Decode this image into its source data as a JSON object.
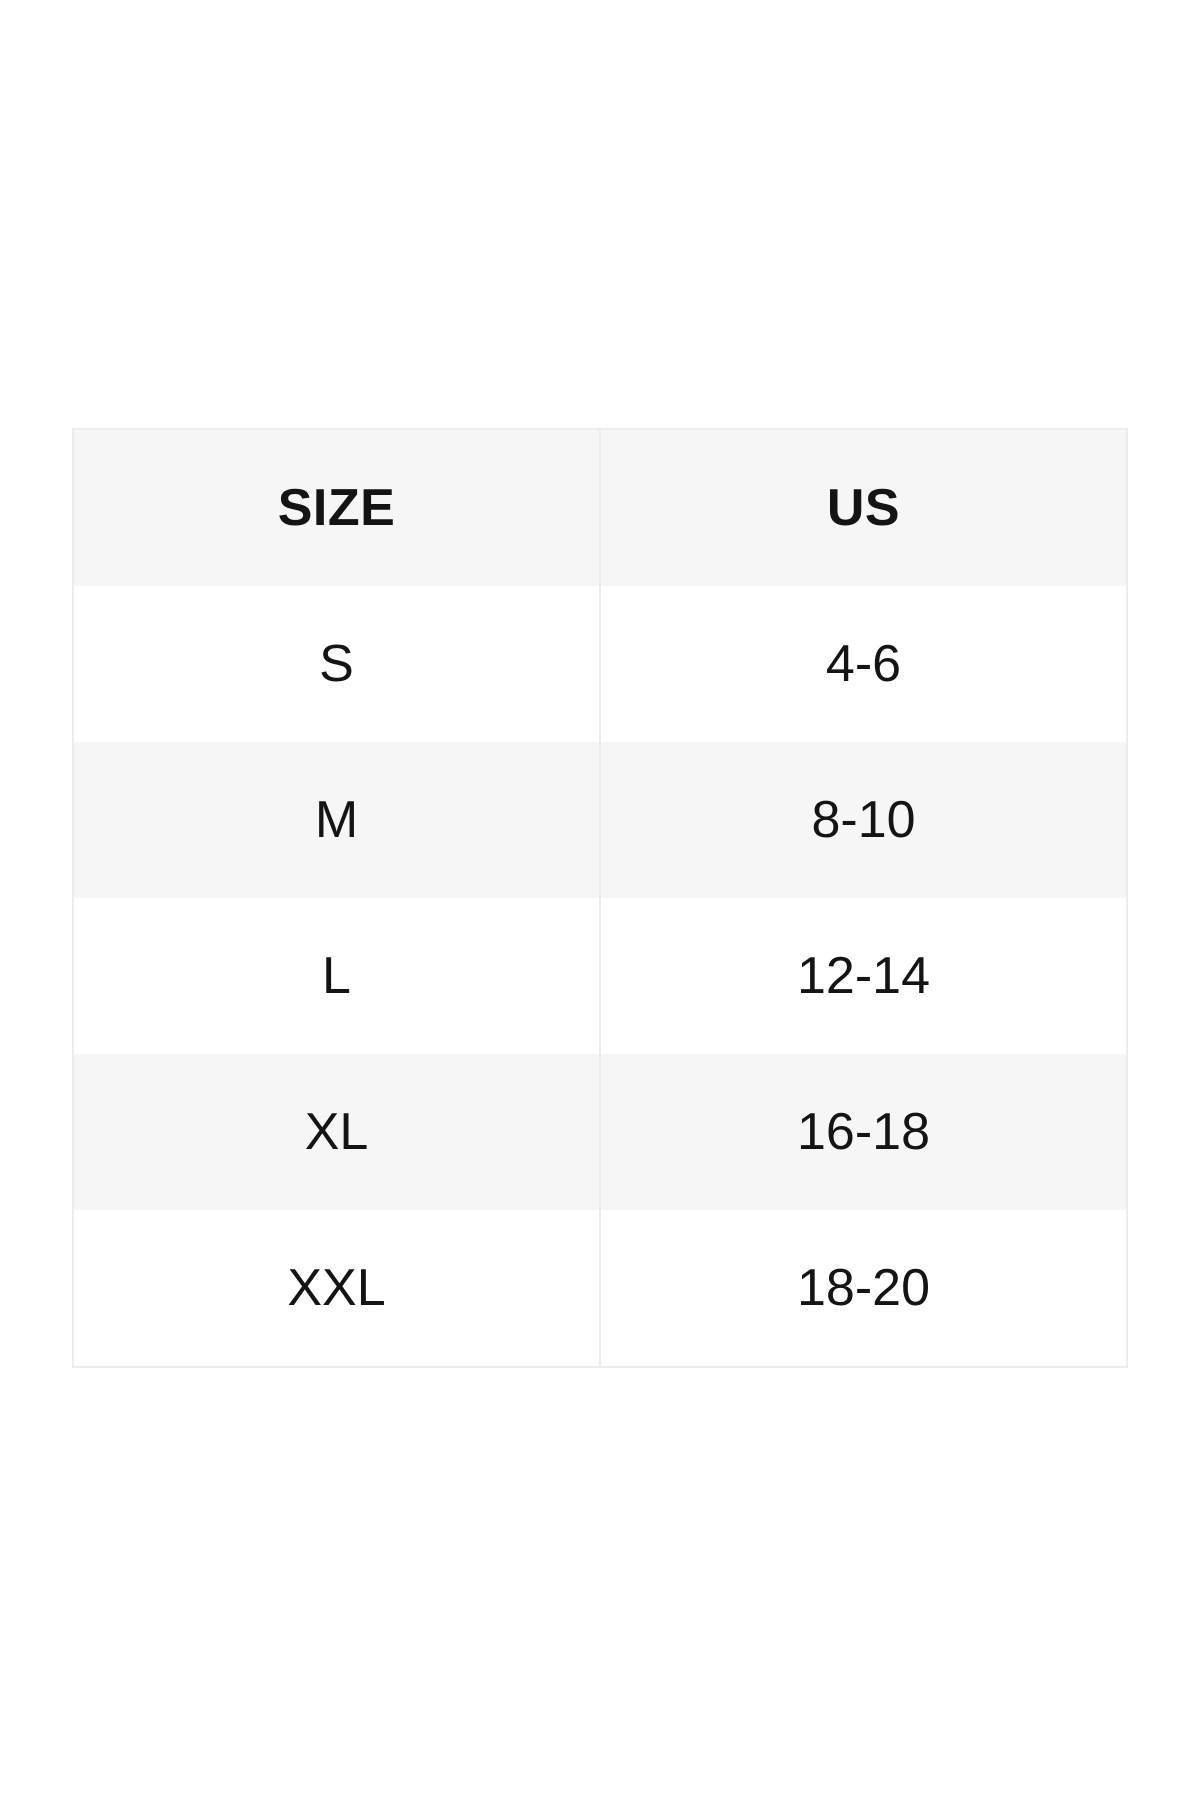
{
  "chart_data": {
    "type": "table",
    "columns": [
      "SIZE",
      "US"
    ],
    "rows": [
      [
        "S",
        "4-6"
      ],
      [
        "M",
        "8-10"
      ],
      [
        "L",
        "12-14"
      ],
      [
        "XL",
        "16-18"
      ],
      [
        "XXL",
        "18-20"
      ]
    ],
    "title": "",
    "legend": "none",
    "grid": "alternating-row-shading"
  },
  "table": {
    "header": {
      "size": "SIZE",
      "us": "US"
    },
    "rows": [
      {
        "size": "S",
        "us": "4-6"
      },
      {
        "size": "M",
        "us": "8-10"
      },
      {
        "size": "L",
        "us": "12-14"
      },
      {
        "size": "XL",
        "us": "16-18"
      },
      {
        "size": "XXL",
        "us": "18-20"
      }
    ]
  },
  "colors": {
    "background": "#ffffff",
    "row_shade": "#f6f6f6",
    "border": "#ececec",
    "text": "#141414"
  }
}
